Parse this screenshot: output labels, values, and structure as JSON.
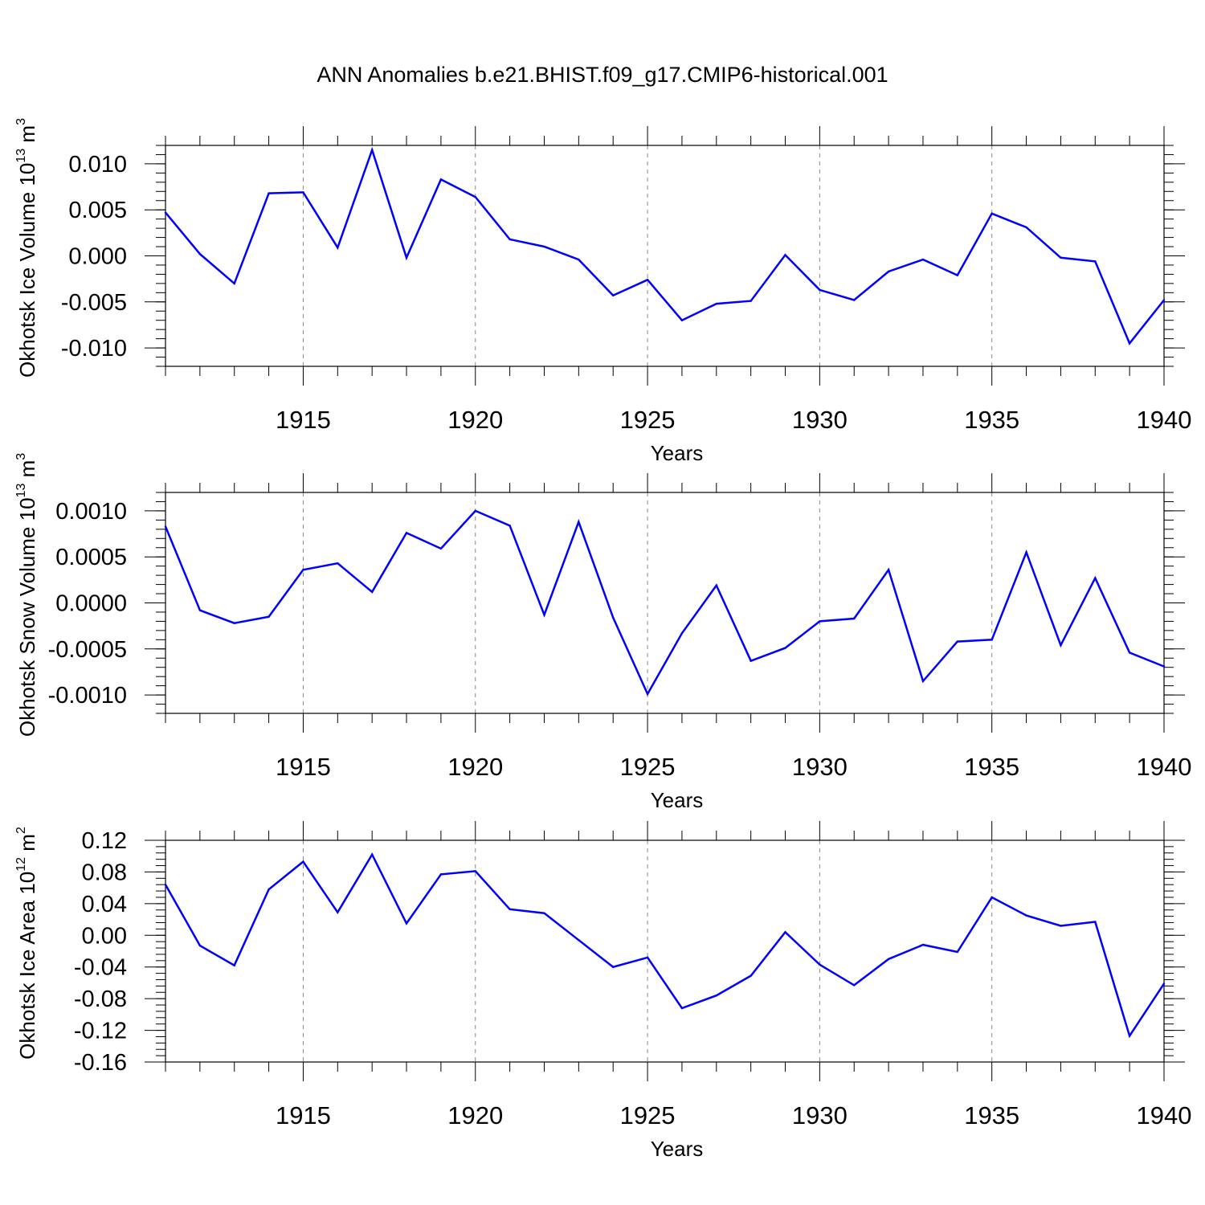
{
  "title": "ANN Anomalies b.e21.BHIST.f09_g17.CMIP6-historical.001",
  "chart_data": [
    {
      "type": "line",
      "ylabel": "Okhotsk Ice Volume 10",
      "ylabel_exp": "13",
      "ylabel_unit": " m",
      "ylabel_unit_exp": "3",
      "xlabel": "Years",
      "xlim": [
        1911,
        1940
      ],
      "ylim": [
        -0.012,
        0.012
      ],
      "yticks": [
        0.01,
        0.005,
        0.0,
        -0.005,
        -0.01
      ],
      "yticklabels": [
        "0.010",
        "0.005",
        "0.000",
        "-0.005",
        "-0.010"
      ],
      "xticks": [
        1915,
        1920,
        1925,
        1930,
        1935,
        1940
      ],
      "xticklabels": [
        "1915",
        "1920",
        "1925",
        "1930",
        "1935",
        "1940"
      ],
      "grid": "x-dashed",
      "line_color": "#0000ff",
      "x": [
        1911,
        1912,
        1913,
        1914,
        1915,
        1916,
        1917,
        1918,
        1919,
        1920,
        1921,
        1922,
        1923,
        1924,
        1925,
        1926,
        1927,
        1928,
        1929,
        1930,
        1931,
        1932,
        1933,
        1934,
        1935,
        1936,
        1937,
        1938,
        1939,
        1940
      ],
      "values": [
        0.0047,
        0.0002,
        -0.003,
        0.0068,
        0.0069,
        0.0009,
        0.0115,
        -0.0002,
        0.0083,
        0.0064,
        0.0018,
        0.001,
        -0.0004,
        -0.0043,
        -0.0026,
        -0.007,
        -0.0052,
        -0.0049,
        0.0001,
        -0.0037,
        -0.0048,
        -0.0017,
        -0.0004,
        -0.0021,
        0.0046,
        0.0031,
        -0.0002,
        -0.0006,
        -0.0095,
        -0.0048
      ]
    },
    {
      "type": "line",
      "ylabel": "Okhotsk Snow Volume 10",
      "ylabel_exp": "13",
      "ylabel_unit": " m",
      "ylabel_unit_exp": "3",
      "xlabel": "Years",
      "xlim": [
        1911,
        1940
      ],
      "ylim": [
        -0.0012,
        0.0012
      ],
      "yticks": [
        0.001,
        0.0005,
        0.0,
        -0.0005,
        -0.001
      ],
      "yticklabels": [
        "0.0010",
        "0.0005",
        "0.0000",
        "-0.0005",
        "-0.0010"
      ],
      "xticks": [
        1915,
        1920,
        1925,
        1930,
        1935,
        1940
      ],
      "xticklabels": [
        "1915",
        "1920",
        "1925",
        "1930",
        "1935",
        "1940"
      ],
      "grid": "x-dashed",
      "line_color": "#0000ff",
      "x": [
        1911,
        1912,
        1913,
        1914,
        1915,
        1916,
        1917,
        1918,
        1919,
        1920,
        1921,
        1922,
        1923,
        1924,
        1925,
        1926,
        1927,
        1928,
        1929,
        1930,
        1931,
        1932,
        1933,
        1934,
        1935,
        1936,
        1937,
        1938,
        1939,
        1940
      ],
      "values": [
        0.00083,
        -8e-05,
        -0.00022,
        -0.00015,
        0.00036,
        0.00043,
        0.00012,
        0.00076,
        0.00059,
        0.001,
        0.00084,
        -0.00013,
        0.00088,
        -0.00016,
        -0.00099,
        -0.00033,
        0.00019,
        -0.00063,
        -0.00049,
        -0.0002,
        -0.00017,
        0.00036,
        -0.00085,
        -0.00042,
        -0.0004,
        0.00055,
        -0.00046,
        0.00027,
        -0.00054,
        -0.00069
      ]
    },
    {
      "type": "line",
      "ylabel": "Okhotsk Ice Area 10",
      "ylabel_exp": "12",
      "ylabel_unit": " m",
      "ylabel_unit_exp": "2",
      "xlabel": "Years",
      "xlim": [
        1911,
        1940
      ],
      "ylim": [
        -0.16,
        0.12
      ],
      "yticks": [
        0.12,
        0.08,
        0.04,
        0.0,
        -0.04,
        -0.08,
        -0.12,
        -0.16
      ],
      "yticklabels": [
        "0.12",
        "0.08",
        "0.04",
        "0.00",
        "-0.04",
        "-0.08",
        "-0.12",
        "-0.16"
      ],
      "xticks": [
        1915,
        1920,
        1925,
        1930,
        1935,
        1940
      ],
      "xticklabels": [
        "1915",
        "1920",
        "1925",
        "1930",
        "1935",
        "1940"
      ],
      "grid": "x-dashed",
      "line_color": "#0000ff",
      "x": [
        1911,
        1912,
        1913,
        1914,
        1915,
        1916,
        1917,
        1918,
        1919,
        1920,
        1921,
        1922,
        1923,
        1924,
        1925,
        1926,
        1927,
        1928,
        1929,
        1930,
        1931,
        1932,
        1933,
        1934,
        1935,
        1936,
        1937,
        1938,
        1939,
        1940
      ],
      "values": [
        0.064,
        -0.013,
        -0.038,
        0.058,
        0.093,
        0.029,
        0.102,
        0.015,
        0.077,
        0.081,
        0.033,
        0.028,
        -0.006,
        -0.04,
        -0.028,
        -0.092,
        -0.076,
        -0.051,
        0.004,
        -0.037,
        -0.063,
        -0.03,
        -0.012,
        -0.021,
        0.048,
        0.025,
        0.012,
        0.017,
        -0.127,
        -0.061
      ]
    }
  ]
}
